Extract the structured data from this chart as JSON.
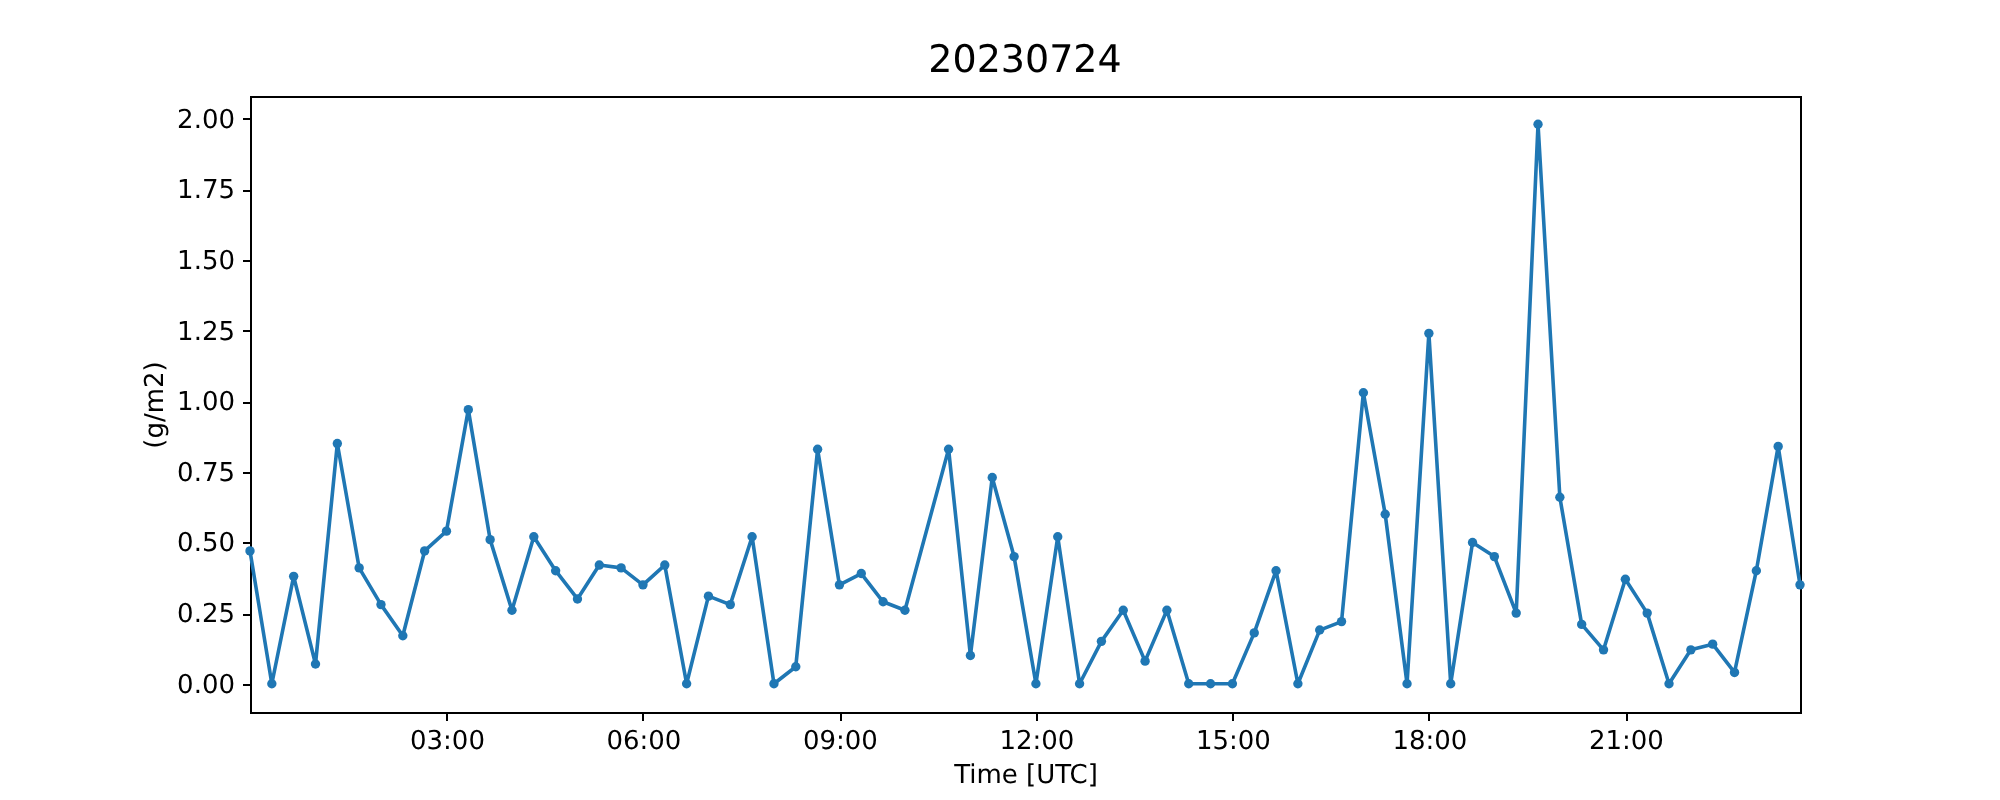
{
  "chart_data": {
    "type": "line",
    "title": "20230724",
    "xlabel": "Time [UTC]",
    "ylabel": "(g/m2)",
    "x": [
      "2023-07-24T00:00",
      "2023-07-24T00:20",
      "2023-07-24T00:40",
      "2023-07-24T01:00",
      "2023-07-24T01:20",
      "2023-07-24T01:40",
      "2023-07-24T02:00",
      "2023-07-24T02:20",
      "2023-07-24T02:40",
      "2023-07-24T03:00",
      "2023-07-24T03:20",
      "2023-07-24T03:40",
      "2023-07-24T04:00",
      "2023-07-24T04:20",
      "2023-07-24T04:40",
      "2023-07-24T05:00",
      "2023-07-24T05:20",
      "2023-07-24T05:40",
      "2023-07-24T06:00",
      "2023-07-24T06:20",
      "2023-07-24T06:40",
      "2023-07-24T07:00",
      "2023-07-24T07:20",
      "2023-07-24T07:40",
      "2023-07-24T08:00",
      "2023-07-24T08:20",
      "2023-07-24T08:40",
      "2023-07-24T09:00",
      "2023-07-24T09:20",
      "2023-07-24T09:40",
      "2023-07-24T10:00",
      "2023-07-24T10:40",
      "2023-07-24T11:00",
      "2023-07-24T11:20",
      "2023-07-24T11:40",
      "2023-07-24T12:00",
      "2023-07-24T12:20",
      "2023-07-24T12:40",
      "2023-07-24T13:00",
      "2023-07-24T13:20",
      "2023-07-24T13:40",
      "2023-07-24T14:00",
      "2023-07-24T14:20",
      "2023-07-24T14:40",
      "2023-07-24T15:00",
      "2023-07-24T15:20",
      "2023-07-24T15:40",
      "2023-07-24T16:00",
      "2023-07-24T16:20",
      "2023-07-24T16:40",
      "2023-07-24T17:00",
      "2023-07-24T17:20",
      "2023-07-24T17:40",
      "2023-07-24T18:00",
      "2023-07-24T18:20",
      "2023-07-24T18:40",
      "2023-07-24T19:00",
      "2023-07-24T19:20",
      "2023-07-24T19:40",
      "2023-07-24T20:00",
      "2023-07-24T20:20",
      "2023-07-24T20:40",
      "2023-07-24T21:00",
      "2023-07-24T21:20",
      "2023-07-24T21:40",
      "2023-07-24T22:00",
      "2023-07-24T22:20",
      "2023-07-24T22:40",
      "2023-07-24T23:00",
      "2023-07-24T23:20",
      "2023-07-24T23:40"
    ],
    "series": [
      {
        "color": "#1f77b4",
        "values": [
          0.47,
          0,
          0.38,
          0.07,
          0.85,
          0.41,
          0.28,
          0.17,
          0.47,
          0.54,
          0.97,
          0.51,
          0.26,
          0.52,
          0.4,
          0.3,
          0.42,
          0.41,
          0.35,
          0.42,
          0,
          0.31,
          0.28,
          0.52,
          0,
          0.06,
          0.83,
          0.35,
          0.39,
          0.29,
          0.26,
          0.83,
          0.1,
          0.73,
          0.45,
          0,
          0.52,
          0,
          0.15,
          0.26,
          0.08,
          0.26,
          0,
          0,
          0,
          0.18,
          0.4,
          0,
          0.19,
          0.22,
          1.03,
          0.6,
          0,
          1.24,
          0,
          0.5,
          0.45,
          0.25,
          1.98,
          0.66,
          0.21,
          0.12,
          0.37,
          0.25,
          0,
          0.12,
          0.14,
          0.04,
          0.4,
          0.84,
          0.35
        ]
      }
    ],
    "xlim": [
      "2023-07-24T00:00",
      "2023-07-24T23:40"
    ],
    "xticks": [
      {
        "value": "2023-07-24T03:00",
        "label": "03:00"
      },
      {
        "value": "2023-07-24T06:00",
        "label": "06:00"
      },
      {
        "value": "2023-07-24T09:00",
        "label": "09:00"
      },
      {
        "value": "2023-07-24T12:00",
        "label": "12:00"
      },
      {
        "value": "2023-07-24T15:00",
        "label": "15:00"
      },
      {
        "value": "2023-07-24T18:00",
        "label": "18:00"
      },
      {
        "value": "2023-07-24T21:00",
        "label": "21:00"
      }
    ],
    "ylim": [
      -0.1,
      2.08
    ],
    "yticks": [
      {
        "value": 0,
        "label": "0.00"
      },
      {
        "value": 0.25,
        "label": "0.25"
      },
      {
        "value": 0.5,
        "label": "0.50"
      },
      {
        "value": 0.75,
        "label": "0.75"
      },
      {
        "value": 1,
        "label": "1.00"
      },
      {
        "value": 1.25,
        "label": "1.25"
      },
      {
        "value": 1.5,
        "label": "1.50"
      },
      {
        "value": 1.75,
        "label": "1.75"
      },
      {
        "value": 2,
        "label": "2.00"
      }
    ],
    "grid": false,
    "marker": "circle",
    "line_style": "solid"
  }
}
